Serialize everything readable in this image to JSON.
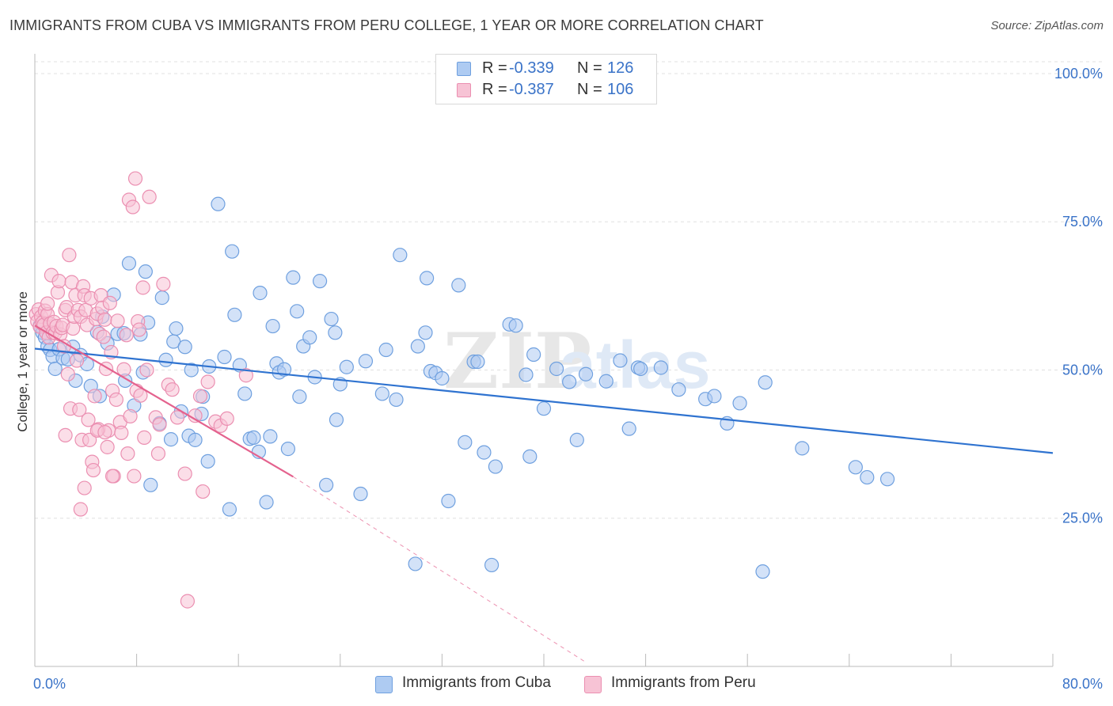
{
  "header": {
    "title": "IMMIGRANTS FROM CUBA VS IMMIGRANTS FROM PERU COLLEGE, 1 YEAR OR MORE CORRELATION CHART",
    "source": "Source: ZipAtlas.com"
  },
  "legend": {
    "r_label": "R =",
    "n_label": "N =",
    "rows": [
      {
        "r": "-0.339",
        "n": "126",
        "color": "#8db4e8"
      },
      {
        "r": "-0.387",
        "n": "106",
        "color": "#f2a3bf"
      }
    ]
  },
  "watermark": {
    "zip": "ZIP",
    "atlas": "atlas"
  },
  "colors": {
    "cuba_fill": "#aecbf2",
    "cuba_stroke": "#6fa0df",
    "cuba_line": "#2f73d0",
    "peru_fill": "#f7c3d5",
    "peru_stroke": "#eb8fb1",
    "peru_line": "#e4628e",
    "axis_text": "#3a73c8",
    "grid": "#e0e0e0"
  },
  "chart_data": {
    "type": "scatter",
    "title": "IMMIGRANTS FROM CUBA VS IMMIGRANTS FROM PERU COLLEGE, 1 YEAR OR MORE CORRELATION CHART",
    "xlabel": "",
    "ylabel": "College, 1 year or more",
    "xlim": [
      0,
      80
    ],
    "ylim": [
      0,
      102
    ],
    "x_tick_labels": [
      "0.0%",
      "80.0%"
    ],
    "y_ticks": [
      25,
      50,
      75,
      100
    ],
    "y_tick_labels": [
      "25.0%",
      "50.0%",
      "75.0%",
      "100.0%"
    ],
    "grid": true,
    "series": [
      {
        "name": "Immigrants from Cuba",
        "R": -0.339,
        "N": 126,
        "trend": {
          "x": [
            0,
            80
          ],
          "y": [
            53.6,
            36.0
          ]
        },
        "points": [
          [
            0.4,
            57.5
          ],
          [
            0.6,
            56.3
          ],
          [
            0.8,
            55.5
          ],
          [
            1.0,
            54.0
          ],
          [
            1.2,
            53.4
          ],
          [
            1.4,
            52.3
          ],
          [
            1.6,
            50.2
          ],
          [
            1.9,
            53.5
          ],
          [
            2.2,
            52.0
          ],
          [
            2.6,
            51.8
          ],
          [
            3.0,
            53.9
          ],
          [
            3.2,
            48.2
          ],
          [
            3.6,
            52.5
          ],
          [
            4.1,
            51.0
          ],
          [
            4.4,
            47.3
          ],
          [
            4.9,
            56.4
          ],
          [
            5.1,
            45.6
          ],
          [
            5.3,
            59.0
          ],
          [
            5.7,
            54.5
          ],
          [
            6.2,
            62.7
          ],
          [
            6.5,
            56.1
          ],
          [
            7.0,
            56.2
          ],
          [
            7.1,
            48.2
          ],
          [
            7.4,
            68.0
          ],
          [
            7.8,
            44.0
          ],
          [
            8.3,
            56.0
          ],
          [
            8.5,
            49.6
          ],
          [
            8.7,
            66.6
          ],
          [
            8.9,
            58.0
          ],
          [
            9.1,
            30.6
          ],
          [
            9.8,
            41.0
          ],
          [
            10.0,
            62.2
          ],
          [
            10.3,
            51.7
          ],
          [
            10.7,
            38.3
          ],
          [
            10.9,
            54.8
          ],
          [
            11.1,
            57.0
          ],
          [
            11.5,
            43.0
          ],
          [
            11.8,
            53.9
          ],
          [
            12.1,
            38.9
          ],
          [
            12.3,
            50.0
          ],
          [
            12.6,
            38.2
          ],
          [
            13.1,
            42.6
          ],
          [
            13.2,
            45.5
          ],
          [
            13.6,
            34.6
          ],
          [
            13.7,
            50.6
          ],
          [
            14.4,
            78.0
          ],
          [
            14.9,
            52.2
          ],
          [
            15.3,
            26.5
          ],
          [
            15.5,
            70.0
          ],
          [
            15.7,
            59.3
          ],
          [
            16.1,
            50.8
          ],
          [
            16.5,
            46.0
          ],
          [
            16.9,
            38.4
          ],
          [
            17.2,
            38.6
          ],
          [
            17.6,
            36.2
          ],
          [
            17.7,
            63.0
          ],
          [
            18.2,
            27.7
          ],
          [
            18.5,
            38.8
          ],
          [
            18.7,
            57.4
          ],
          [
            19.0,
            51.1
          ],
          [
            19.2,
            49.6
          ],
          [
            19.6,
            50.1
          ],
          [
            19.9,
            36.7
          ],
          [
            20.3,
            65.6
          ],
          [
            20.6,
            59.9
          ],
          [
            20.8,
            45.5
          ],
          [
            21.1,
            54.0
          ],
          [
            21.6,
            55.5
          ],
          [
            22.0,
            48.8
          ],
          [
            22.4,
            65.0
          ],
          [
            22.9,
            30.6
          ],
          [
            23.3,
            58.6
          ],
          [
            23.6,
            56.3
          ],
          [
            23.7,
            41.6
          ],
          [
            24.0,
            47.6
          ],
          [
            24.5,
            50.5
          ],
          [
            25.6,
            29.1
          ],
          [
            26.0,
            51.5
          ],
          [
            27.3,
            46.0
          ],
          [
            27.6,
            53.4
          ],
          [
            28.4,
            45.0
          ],
          [
            28.7,
            69.4
          ],
          [
            29.9,
            17.3
          ],
          [
            30.1,
            54.0
          ],
          [
            30.7,
            56.3
          ],
          [
            30.8,
            65.5
          ],
          [
            31.1,
            49.8
          ],
          [
            31.5,
            49.5
          ],
          [
            32.0,
            48.6
          ],
          [
            32.5,
            27.9
          ],
          [
            33.3,
            64.3
          ],
          [
            33.8,
            37.8
          ],
          [
            34.5,
            51.4
          ],
          [
            34.8,
            51.4
          ],
          [
            35.3,
            36.1
          ],
          [
            35.9,
            17.1
          ],
          [
            36.2,
            33.7
          ],
          [
            37.3,
            57.7
          ],
          [
            37.8,
            57.5
          ],
          [
            38.6,
            49.2
          ],
          [
            38.9,
            35.4
          ],
          [
            39.2,
            52.6
          ],
          [
            40.0,
            43.5
          ],
          [
            41.0,
            50.2
          ],
          [
            42.0,
            48.0
          ],
          [
            42.6,
            38.2
          ],
          [
            43.3,
            49.3
          ],
          [
            44.9,
            48.1
          ],
          [
            46.0,
            51.6
          ],
          [
            46.7,
            40.1
          ],
          [
            47.4,
            50.4
          ],
          [
            47.6,
            50.2
          ],
          [
            49.2,
            50.4
          ],
          [
            50.6,
            46.7
          ],
          [
            52.7,
            45.1
          ],
          [
            53.4,
            45.6
          ],
          [
            54.4,
            41.0
          ],
          [
            55.4,
            44.4
          ],
          [
            57.2,
            16.0
          ],
          [
            57.4,
            47.9
          ],
          [
            60.3,
            36.8
          ],
          [
            64.5,
            33.6
          ],
          [
            65.4,
            31.9
          ],
          [
            67.0,
            31.6
          ]
        ]
      },
      {
        "name": "Immigrants from Peru",
        "R": -0.387,
        "N": 106,
        "trend": {
          "x": [
            0,
            20.3
          ],
          "y": [
            57.5,
            32.0
          ]
        },
        "trend_dashed": {
          "x": [
            20.3,
            43.3
          ],
          "y": [
            32.0,
            0.7
          ]
        },
        "points": [
          [
            0.1,
            59.4
          ],
          [
            0.2,
            58.2
          ],
          [
            0.3,
            60.2
          ],
          [
            0.4,
            57.3
          ],
          [
            0.5,
            59.0
          ],
          [
            0.6,
            58.0
          ],
          [
            0.7,
            57.6
          ],
          [
            0.8,
            60.0
          ],
          [
            0.9,
            56.3
          ],
          [
            1.0,
            59.4
          ],
          [
            1.1,
            55.5
          ],
          [
            1.2,
            57.8
          ],
          [
            1.3,
            66.0
          ],
          [
            1.4,
            56.3
          ],
          [
            1.5,
            58.1
          ],
          [
            1.6,
            56.2
          ],
          [
            1.7,
            57.4
          ],
          [
            1.8,
            63.1
          ],
          [
            1.9,
            65.0
          ],
          [
            2.0,
            56.0
          ],
          [
            2.1,
            57.1
          ],
          [
            2.2,
            57.6
          ],
          [
            2.3,
            54.0
          ],
          [
            2.4,
            60.1
          ],
          [
            2.5,
            60.6
          ],
          [
            2.6,
            49.3
          ],
          [
            2.7,
            69.4
          ],
          [
            2.8,
            43.5
          ],
          [
            2.9,
            64.8
          ],
          [
            3.0,
            57.0
          ],
          [
            3.1,
            59.0
          ],
          [
            3.2,
            62.6
          ],
          [
            3.3,
            51.6
          ],
          [
            3.4,
            60.1
          ],
          [
            3.5,
            43.3
          ],
          [
            3.6,
            59.0
          ],
          [
            3.7,
            38.2
          ],
          [
            3.8,
            64.1
          ],
          [
            3.9,
            62.6
          ],
          [
            4.0,
            60.1
          ],
          [
            4.1,
            57.6
          ],
          [
            4.2,
            41.6
          ],
          [
            4.3,
            38.2
          ],
          [
            4.4,
            62.1
          ],
          [
            4.5,
            34.5
          ],
          [
            4.6,
            33.1
          ],
          [
            4.7,
            45.6
          ],
          [
            4.8,
            58.6
          ],
          [
            4.9,
            59.5
          ],
          [
            5.0,
            40.0
          ],
          [
            5.1,
            56.1
          ],
          [
            5.2,
            62.6
          ],
          [
            5.3,
            60.5
          ],
          [
            5.4,
            55.6
          ],
          [
            5.5,
            58.5
          ],
          [
            5.6,
            50.2
          ],
          [
            5.7,
            37.0
          ],
          [
            5.8,
            39.8
          ],
          [
            5.9,
            61.3
          ],
          [
            6.0,
            53.0
          ],
          [
            6.1,
            46.5
          ],
          [
            6.2,
            32.1
          ],
          [
            6.4,
            45.0
          ],
          [
            6.5,
            58.3
          ],
          [
            6.7,
            41.2
          ],
          [
            6.8,
            39.4
          ],
          [
            7.0,
            50.1
          ],
          [
            7.2,
            55.9
          ],
          [
            7.3,
            35.9
          ],
          [
            7.4,
            78.7
          ],
          [
            7.5,
            42.2
          ],
          [
            7.7,
            77.5
          ],
          [
            7.8,
            32.1
          ],
          [
            7.9,
            82.3
          ],
          [
            8.0,
            46.5
          ],
          [
            8.1,
            58.2
          ],
          [
            8.2,
            56.8
          ],
          [
            8.3,
            45.7
          ],
          [
            8.5,
            63.9
          ],
          [
            8.6,
            38.6
          ],
          [
            8.8,
            50.0
          ],
          [
            9.0,
            79.2
          ],
          [
            9.5,
            42.0
          ],
          [
            9.8,
            40.8
          ],
          [
            10.1,
            64.5
          ],
          [
            10.5,
            47.5
          ],
          [
            10.8,
            46.7
          ],
          [
            11.2,
            42.0
          ],
          [
            11.8,
            32.5
          ],
          [
            12.0,
            11.0
          ],
          [
            12.6,
            42.3
          ],
          [
            13.0,
            45.6
          ],
          [
            13.2,
            29.5
          ],
          [
            13.6,
            48.0
          ],
          [
            14.2,
            41.3
          ],
          [
            14.6,
            40.6
          ],
          [
            15.1,
            41.8
          ],
          [
            16.6,
            49.1
          ],
          [
            2.4,
            39.0
          ],
          [
            3.6,
            26.5
          ],
          [
            4.9,
            39.8
          ],
          [
            6.1,
            32.1
          ],
          [
            3.9,
            30.1
          ],
          [
            1.0,
            61.2
          ],
          [
            5.5,
            39.5
          ],
          [
            9.7,
            35.9
          ]
        ]
      }
    ]
  },
  "bottom_legend": [
    "Immigrants from Cuba",
    "Immigrants from Peru"
  ]
}
